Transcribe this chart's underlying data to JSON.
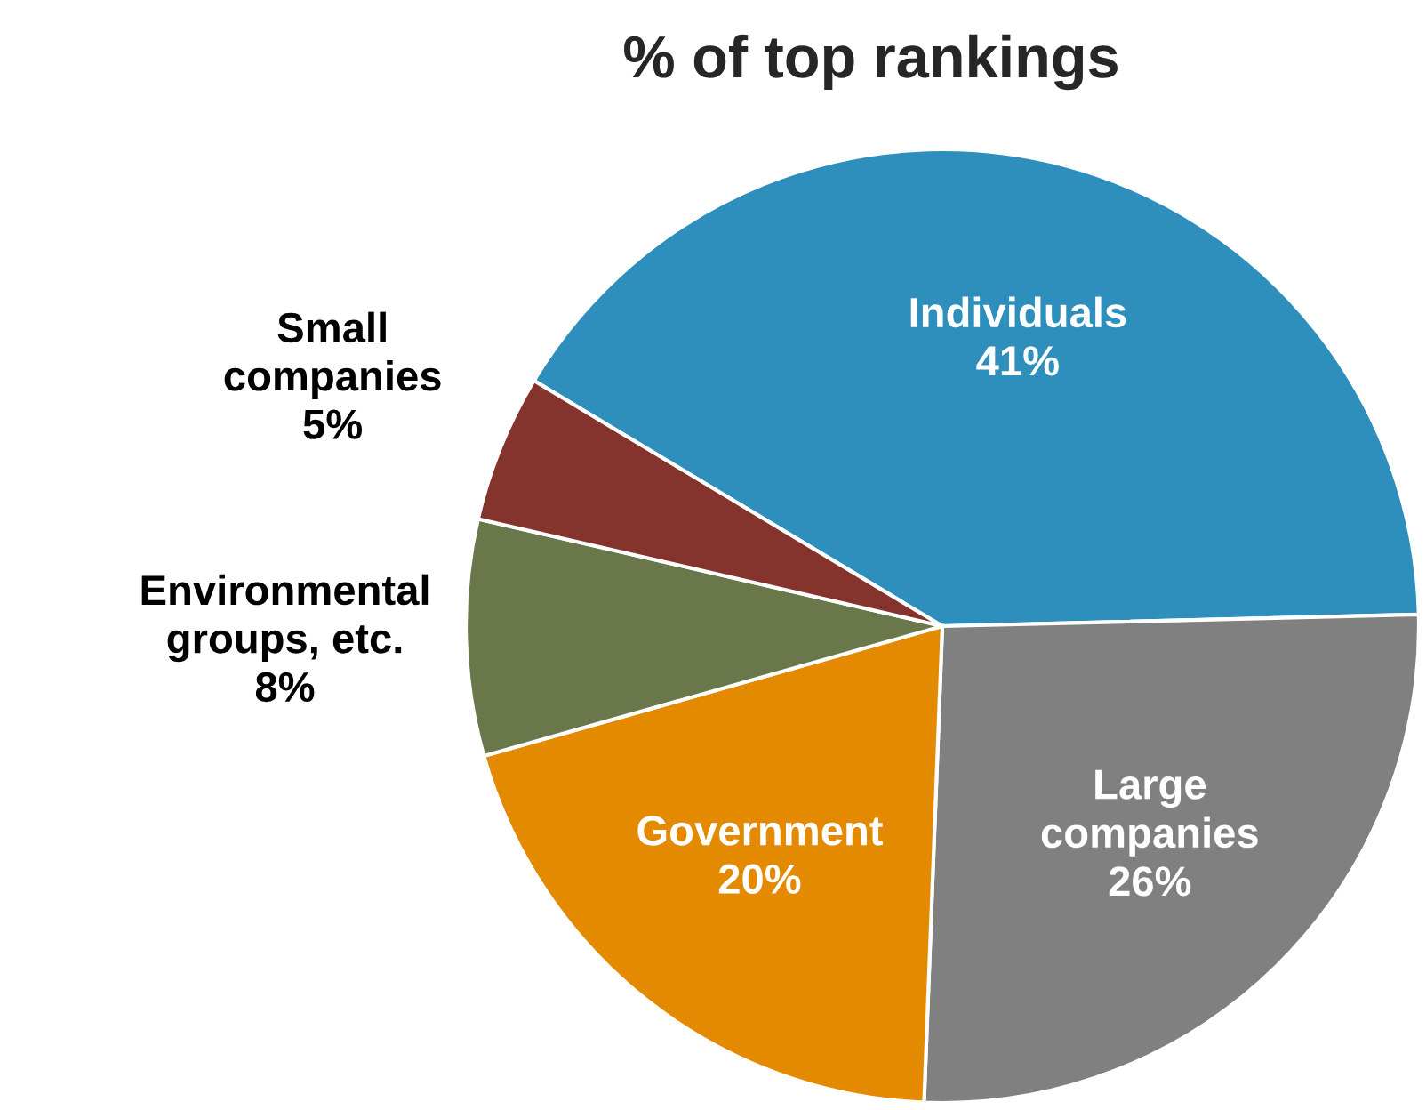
{
  "chart_data": {
    "type": "pie",
    "title": "% of top rankings",
    "categories": [
      "Individuals",
      "Large\ncompanies",
      "Government",
      "Environmental\ngroups, etc.",
      "Small\ncompanies"
    ],
    "values": [
      41,
      26,
      20,
      8,
      5
    ],
    "value_labels": [
      "41%",
      "26%",
      "20%",
      "8%",
      "5%"
    ],
    "colors": [
      "#2e8fbd",
      "#808080",
      "#e38a00",
      "#69774a",
      "#84342d"
    ],
    "legend": false
  }
}
